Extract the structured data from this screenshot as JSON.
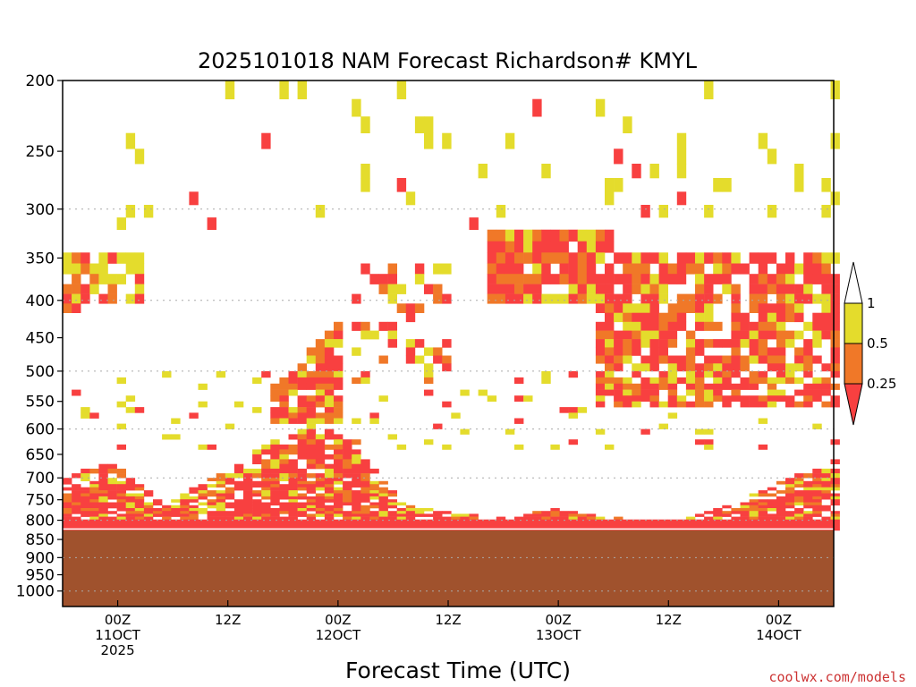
{
  "chart_data": {
    "type": "heatmap",
    "title": "2025101018 NAM Forecast Richardson# KMYL",
    "xlabel": "Forecast Time (UTC)",
    "ylabel": "",
    "y_scale": "log",
    "y_reversed": true,
    "ylim": [
      200,
      1050
    ],
    "yticks": [
      200,
      250,
      300,
      350,
      400,
      450,
      500,
      550,
      600,
      650,
      700,
      750,
      800,
      850,
      900,
      950,
      1000
    ],
    "ytick_labels": [
      "200",
      "250",
      "300",
      "350",
      "400",
      "450",
      "500",
      "550",
      "600",
      "650",
      "700",
      "750",
      "800",
      "850",
      "900",
      "950",
      "1000"
    ],
    "y_gridlines": [
      300,
      400,
      500,
      600,
      700,
      800,
      900,
      1000
    ],
    "x_unit": "hours",
    "xlim": [
      -6,
      78
    ],
    "xticks": [
      {
        "x": 0,
        "lines": [
          "00Z",
          "11OCT",
          "2025"
        ]
      },
      {
        "x": 12,
        "lines": [
          "12Z"
        ]
      },
      {
        "x": 24,
        "lines": [
          "00Z",
          "12OCT"
        ]
      },
      {
        "x": 36,
        "lines": [
          "12Z"
        ]
      },
      {
        "x": 48,
        "lines": [
          "00Z",
          "13OCT"
        ]
      },
      {
        "x": 60,
        "lines": [
          "12Z"
        ]
      },
      {
        "x": 72,
        "lines": [
          "00Z",
          "14OCT"
        ]
      }
    ],
    "legend": {
      "placement": "right",
      "levels": [
        "0.25",
        "0.5",
        "1"
      ],
      "bins": [
        {
          "range": "< 0.25",
          "color": "#f84040"
        },
        {
          "range": "0.25 - 0.5",
          "color": "#f07828"
        },
        {
          "range": "0.5 - 1",
          "color": "#e4dc2c"
        },
        {
          "range": "> 1",
          "color": "#ffffff"
        }
      ]
    },
    "ground": {
      "color": "#a0522d",
      "top_pressure_range": [
        826,
        830
      ]
    },
    "layers": [
      {
        "name": "boundary-layer-low-ri",
        "color": "#f84040",
        "x": [
          -6,
          78
        ],
        "p_bottom_cm": [
          815,
          818,
          820,
          812,
          812,
          815,
          812,
          816,
          810,
          812,
          818,
          810,
          815,
          812,
          818,
          812,
          810
        ],
        "p_top": [
          690,
          665,
          760,
          700,
          640,
          590,
          620,
          760,
          780,
          790,
          770,
          790,
          800,
          790,
          750,
          700,
          660
        ]
      },
      {
        "name": "mid-level-cluster-1",
        "color": "#f07828",
        "x": [
          16,
          24
        ],
        "p": [
          420,
          580
        ]
      },
      {
        "name": "mid-level-cluster-2",
        "color": "#f84040",
        "x": [
          40,
          54
        ],
        "p": [
          325,
          400
        ]
      },
      {
        "name": "mid-level-cluster-3",
        "color": "#f84040",
        "x": [
          56,
          78
        ],
        "p": [
          330,
          560
        ]
      },
      {
        "name": "upper-patches",
        "color": "#e4dc2c",
        "x": [
          -6,
          78
        ],
        "p": [
          200,
          320
        ]
      }
    ]
  },
  "credit": "coolwx.com/models"
}
